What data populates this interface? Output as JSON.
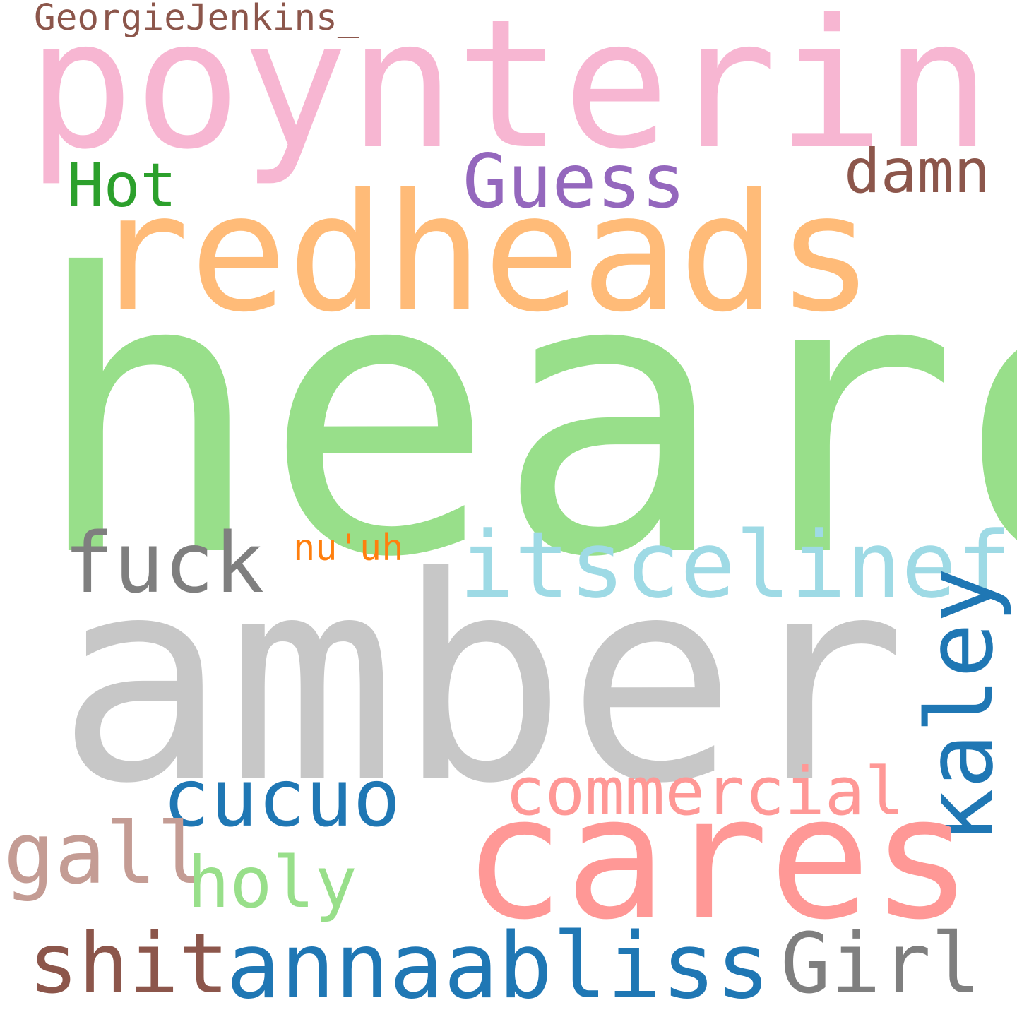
{
  "word_cloud": {
    "words": [
      {
        "id": "georgiejenkins",
        "text": "GeorgieJenkins_",
        "color": "#8c564b"
      },
      {
        "id": "poynterin",
        "text": "poynterin",
        "color": "#f7b6d2"
      },
      {
        "id": "hot",
        "text": "Hot",
        "color": "#2ca02c"
      },
      {
        "id": "guess",
        "text": "Guess",
        "color": "#9467bd"
      },
      {
        "id": "damn",
        "text": "damn",
        "color": "#8c564b"
      },
      {
        "id": "redheads",
        "text": "redheads",
        "color": "#ffbb78"
      },
      {
        "id": "heard",
        "text": "heard",
        "color": "#98df8a"
      },
      {
        "id": "fuck",
        "text": "fuck",
        "color": "#7f7f7f"
      },
      {
        "id": "nuuh",
        "text": "nu'uh",
        "color": "#ff7f0e"
      },
      {
        "id": "itscelineful",
        "text": "itscelineful",
        "color": "#9edae5"
      },
      {
        "id": "amber",
        "text": "amber",
        "color": "#c7c7c7"
      },
      {
        "id": "kaley",
        "text": "kaley",
        "color": "#1f77b4"
      },
      {
        "id": "cucuo",
        "text": "cucuo",
        "color": "#1f77b4"
      },
      {
        "id": "commercial",
        "text": "commercial",
        "color": "#ff9896"
      },
      {
        "id": "cares",
        "text": "cares",
        "color": "#ff9896"
      },
      {
        "id": "gall",
        "text": "gall",
        "color": "#c49c94"
      },
      {
        "id": "holy",
        "text": "holy",
        "color": "#98df8a"
      },
      {
        "id": "shit",
        "text": "shit",
        "color": "#8c564b"
      },
      {
        "id": "annaabliss",
        "text": "annaabliss",
        "color": "#1f77b4"
      },
      {
        "id": "girl",
        "text": "Girl",
        "color": "#7f7f7f"
      }
    ]
  }
}
